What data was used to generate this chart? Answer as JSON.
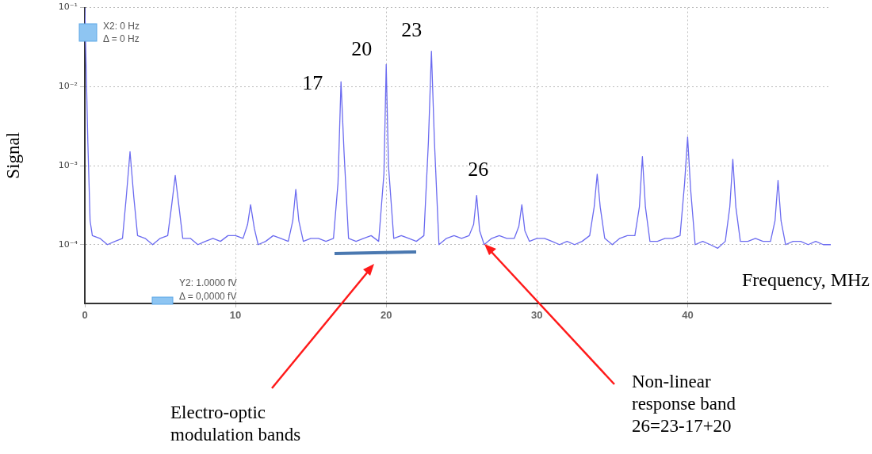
{
  "chart_data": {
    "type": "line",
    "xlabel": "Frequency, MHz",
    "ylabel": "Signal",
    "log": "y",
    "grid": true,
    "legend": false,
    "marker": "none",
    "line_style": "solid",
    "xlim": [
      0,
      49.5
    ],
    "xticks": [
      0,
      10,
      20,
      30,
      40
    ],
    "ylim": [
      1.8e-05,
      0.1
    ],
    "yticks": [
      {
        "value": 0.1,
        "label": "10⁻¹"
      },
      {
        "value": 0.01,
        "label": "10⁻²"
      },
      {
        "value": 0.001,
        "label": "10⁻³"
      },
      {
        "value": 0.0001,
        "label": "10⁻⁴"
      }
    ],
    "series": [
      {
        "color": "#6b6bf0",
        "x": [
          0,
          0.2,
          0.35,
          0.5,
          1,
          1.5,
          2,
          2.5,
          2.75,
          3,
          3.25,
          3.5,
          4,
          4.5,
          5,
          5.5,
          5.75,
          6,
          6.25,
          6.5,
          7,
          7.5,
          8,
          8.5,
          9,
          9.5,
          10,
          10.5,
          10.8,
          11,
          11.25,
          11.5,
          12,
          12.5,
          13,
          13.5,
          13.8,
          14,
          14.2,
          14.5,
          15,
          15.5,
          16,
          16.5,
          16.8,
          17,
          17.2,
          17.5,
          18,
          18.5,
          19,
          19.5,
          19.85,
          20,
          20.15,
          20.5,
          21,
          21.5,
          22,
          22.5,
          22.8,
          23,
          23.2,
          23.5,
          24,
          24.5,
          25,
          25.5,
          25.8,
          26,
          26.2,
          26.5,
          27,
          27.5,
          28,
          28.5,
          28.8,
          29,
          29.2,
          29.5,
          30,
          30.5,
          31,
          31.5,
          32,
          32.5,
          33,
          33.5,
          33.8,
          34,
          34.2,
          34.5,
          35,
          35.5,
          36,
          36.5,
          36.8,
          37,
          37.2,
          37.5,
          38,
          38.5,
          39,
          39.5,
          39.8,
          40,
          40.2,
          40.5,
          41,
          41.5,
          42,
          42.5,
          42.8,
          43,
          43.2,
          43.5,
          44,
          44.5,
          45,
          45.5,
          45.8,
          46,
          46.2,
          46.5,
          47,
          47.5,
          48,
          48.5,
          49,
          49.5
        ],
        "values": [
          0.1,
          0.002,
          0.0002,
          0.00013,
          0.00012,
          0.0001,
          0.00011,
          0.00012,
          0.0004,
          0.0015,
          0.0004,
          0.00013,
          0.00012,
          0.0001,
          0.00012,
          0.00013,
          0.0003,
          0.00075,
          0.0003,
          0.00012,
          0.00012,
          0.0001,
          0.00011,
          0.00012,
          0.00011,
          0.00013,
          0.00013,
          0.00012,
          0.00018,
          0.00032,
          0.00016,
          0.0001,
          0.00011,
          0.00013,
          0.00012,
          0.00011,
          0.0002,
          0.0005,
          0.0002,
          0.00011,
          0.00012,
          0.00012,
          0.00011,
          0.00012,
          0.0006,
          0.0115,
          0.0015,
          0.00012,
          0.00011,
          0.00012,
          0.00013,
          0.00011,
          0.0008,
          0.019,
          0.001,
          0.00012,
          0.00013,
          0.00012,
          0.00011,
          0.00013,
          0.002,
          0.028,
          0.002,
          0.0001,
          0.00012,
          0.00013,
          0.00012,
          0.00013,
          0.00018,
          0.00042,
          0.00015,
          0.0001,
          0.00012,
          0.00013,
          0.00012,
          0.00012,
          0.00017,
          0.00032,
          0.00015,
          0.00011,
          0.00012,
          0.00012,
          0.00011,
          0.0001,
          0.00011,
          0.0001,
          0.00011,
          0.00013,
          0.0003,
          0.00078,
          0.0003,
          0.00012,
          0.0001,
          0.00012,
          0.00013,
          0.00013,
          0.0003,
          0.0013,
          0.0003,
          0.00011,
          0.00011,
          0.00012,
          0.00012,
          0.00013,
          0.0006,
          0.0023,
          0.0005,
          0.0001,
          0.00011,
          0.0001,
          9e-05,
          0.00011,
          0.0003,
          0.0012,
          0.0003,
          0.00011,
          0.00011,
          0.00012,
          0.00011,
          0.00011,
          0.0002,
          0.00065,
          0.0002,
          0.0001,
          0.00011,
          0.00011,
          0.0001,
          0.00011,
          0.0001,
          0.0001
        ]
      }
    ],
    "annotations": [
      {
        "text": "17",
        "x": 17,
        "y": 0.0115
      },
      {
        "text": "20",
        "x": 20,
        "y": 0.019
      },
      {
        "text": "23",
        "x": 23,
        "y": 0.028
      },
      {
        "text": "26",
        "x": 26,
        "y": 0.00042
      },
      "X2: 0 Hz",
      "Δ = 0 Hz",
      "Y2: 1.0000 fV",
      "Δ = 0,0000 fV",
      "Electro-optic modulation bands",
      "Non-linear response band 26=23-17+20"
    ]
  }
}
